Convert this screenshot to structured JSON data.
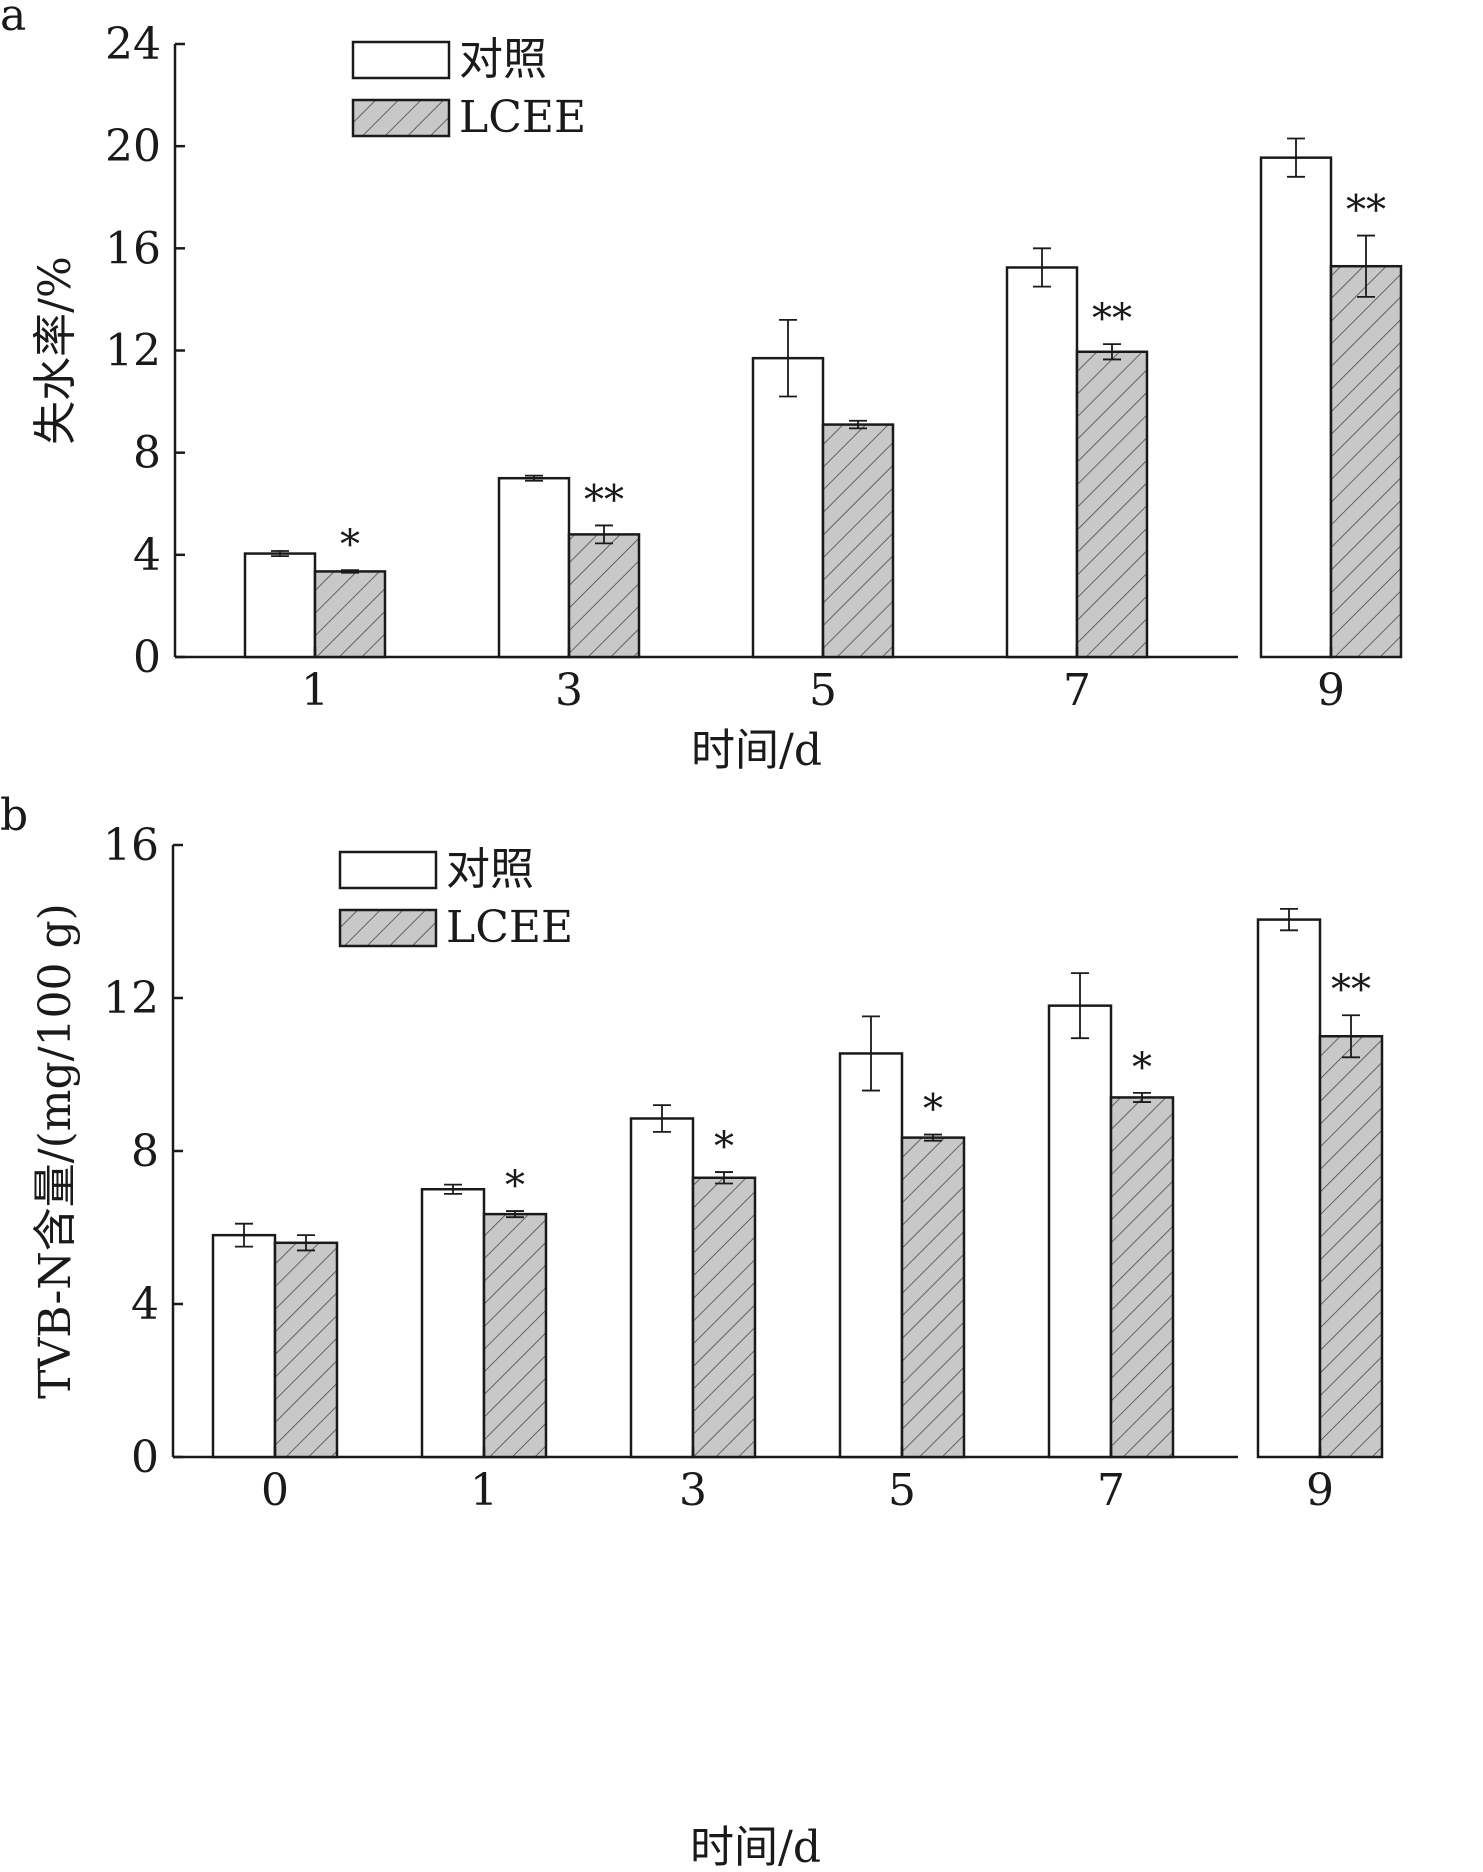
{
  "chart_data": [
    {
      "type": "bar",
      "panel_label": "a",
      "categories": [
        "1",
        "3",
        "5",
        "7",
        "9"
      ],
      "xlabel": "时间/d",
      "ylabel": "失水率/%",
      "ylim": [
        0,
        24
      ],
      "yticks": [
        "0",
        "4",
        "8",
        "12",
        "16",
        "20",
        "24"
      ],
      "legend": {
        "position": "top-left",
        "entries": [
          "对照",
          "LCEE"
        ]
      },
      "series": [
        {
          "name": "对照",
          "fill": "#ffffff",
          "hatched": false,
          "values": [
            4.05,
            7.0,
            11.7,
            15.25,
            19.55
          ],
          "errors": [
            0.1,
            0.1,
            1.5,
            0.75,
            0.75
          ]
        },
        {
          "name": "LCEE",
          "fill": "#c8c8c8",
          "hatched": true,
          "values": [
            3.35,
            4.8,
            9.1,
            11.95,
            15.3
          ],
          "errors": [
            0.05,
            0.35,
            0.15,
            0.3,
            1.2
          ]
        }
      ],
      "significance": [
        "*",
        "**",
        "",
        "**",
        "**"
      ]
    },
    {
      "type": "bar",
      "panel_label": "b",
      "categories": [
        "0",
        "1",
        "3",
        "5",
        "7",
        "9"
      ],
      "xlabel": "时间/d",
      "ylabel": "TVB-N含量/(mg/100 g)",
      "ylim": [
        0,
        16
      ],
      "yticks": [
        "0",
        "4",
        "8",
        "12",
        "16"
      ],
      "legend": {
        "position": "top-left",
        "entries": [
          "对照",
          "LCEE"
        ]
      },
      "series": [
        {
          "name": "对照",
          "fill": "#ffffff",
          "hatched": false,
          "values": [
            5.8,
            7.0,
            8.85,
            10.55,
            11.8,
            14.05
          ],
          "errors": [
            0.3,
            0.12,
            0.35,
            0.97,
            0.85,
            0.28
          ]
        },
        {
          "name": "LCEE",
          "fill": "#c8c8c8",
          "hatched": true,
          "values": [
            5.6,
            6.35,
            7.3,
            8.35,
            9.4,
            11.0
          ],
          "errors": [
            0.2,
            0.08,
            0.15,
            0.08,
            0.12,
            0.55
          ]
        }
      ],
      "significance": [
        "",
        "*",
        "*",
        "*",
        "*",
        "**"
      ]
    }
  ]
}
